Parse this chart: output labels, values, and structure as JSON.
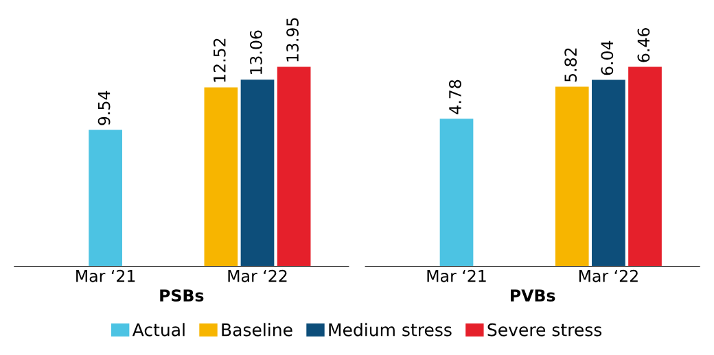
{
  "chart_data": [
    {
      "type": "bar",
      "xlabel": "PSBs",
      "categories": [
        "Mar ‘21",
        "Mar ‘22"
      ],
      "data_labels": true,
      "legend": "bottom",
      "series": [
        {
          "name": "Actual",
          "color": "#4cc3e3",
          "values": [
            9.54,
            null
          ]
        },
        {
          "name": "Baseline",
          "color": "#f7b500",
          "values": [
            null,
            12.52
          ]
        },
        {
          "name": "Medium stress",
          "color": "#0d4e7a",
          "values": [
            null,
            13.06
          ]
        },
        {
          "name": "Severe stress",
          "color": "#e5202b",
          "values": [
            null,
            13.95
          ]
        }
      ]
    },
    {
      "type": "bar",
      "xlabel": "PVBs",
      "categories": [
        "Mar ‘21",
        "Mar ‘22"
      ],
      "data_labels": true,
      "series": [
        {
          "name": "Actual",
          "color": "#4cc3e3",
          "values": [
            4.78,
            null
          ]
        },
        {
          "name": "Baseline",
          "color": "#f7b500",
          "values": [
            null,
            5.82
          ]
        },
        {
          "name": "Medium stress",
          "color": "#0d4e7a",
          "values": [
            null,
            6.04
          ]
        },
        {
          "name": "Severe stress",
          "color": "#e5202b",
          "values": [
            null,
            6.46
          ]
        }
      ]
    }
  ]
}
